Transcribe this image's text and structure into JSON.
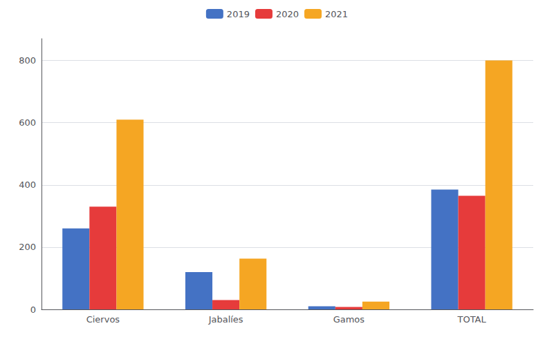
{
  "chart_data": {
    "type": "bar",
    "categories": [
      "Ciervos",
      "Jabalíes",
      "Gamos",
      "TOTAL"
    ],
    "series": [
      {
        "name": "2019",
        "color": "#4472C4",
        "values": [
          260,
          120,
          10,
          385
        ]
      },
      {
        "name": "2020",
        "color": "#E63B3B",
        "values": [
          330,
          30,
          8,
          365
        ]
      },
      {
        "name": "2021",
        "color": "#F5A623",
        "values": [
          610,
          163,
          25,
          800
        ]
      }
    ],
    "ylim": [
      0,
      870
    ],
    "yticks": [
      0,
      200,
      400,
      600,
      800
    ],
    "grid": true,
    "legend": "top"
  }
}
